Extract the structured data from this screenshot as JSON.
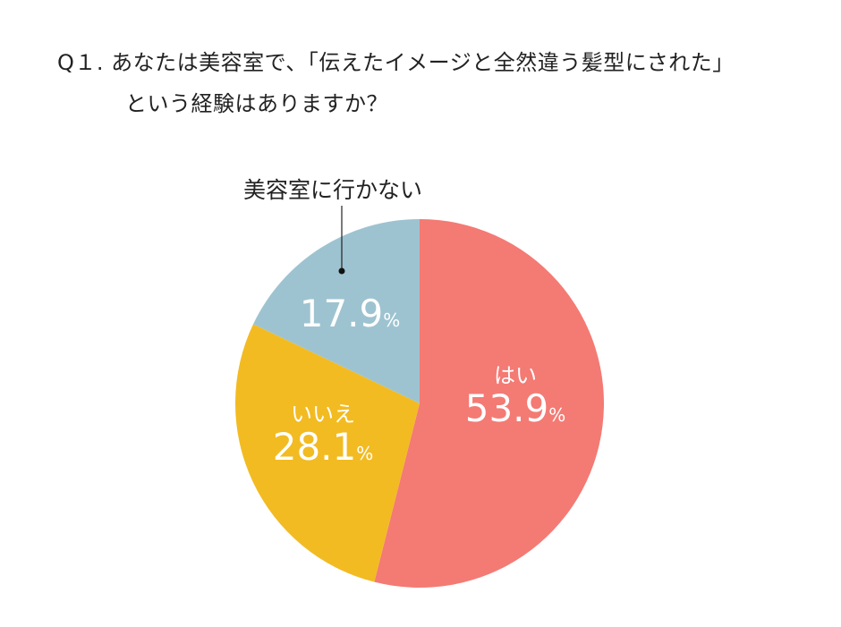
{
  "question": {
    "line1": "Q１. あなたは美容室で、「伝えたイメージと全然違う髪型にされた」",
    "line2": "という経験はありますか？"
  },
  "chart_data": {
    "type": "pie",
    "title": "Q１. あなたは美容室で、「伝えたイメージと全然違う髪型にされた」という経験はありますか？",
    "categories": [
      "はい",
      "いいえ",
      "美容室に行かない"
    ],
    "values": [
      53.9,
      28.1,
      17.9
    ],
    "unit": "%",
    "colors": [
      "#F47A74",
      "#F2BB22",
      "#9EC3D0"
    ],
    "start_angle": "12 o'clock, clockwise",
    "legend": "none (labels inside slices; callout for 美容室に行かない)"
  },
  "labels": {
    "yes": {
      "category": "はい",
      "value": "53.9",
      "unit": "%"
    },
    "no": {
      "category": "いいえ",
      "value": "28.1",
      "unit": "%"
    },
    "none": {
      "category": "美容室に行かない",
      "value": "17.9",
      "unit": "%"
    }
  }
}
